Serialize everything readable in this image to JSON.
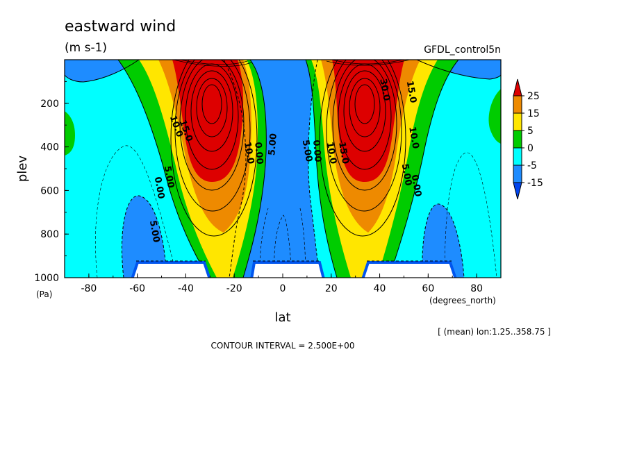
{
  "chart_data": {
    "type": "contour",
    "title": "eastward wind",
    "units": "(m s-1)",
    "dataset": "GFDL_control5n",
    "xlabel": "lat",
    "x_units": "(degrees_north)",
    "ylabel": "plev",
    "y_units": "(Pa)",
    "xlim": [
      -90,
      90
    ],
    "ylim": [
      1000,
      0
    ],
    "x_ticks": [
      -80,
      -60,
      -40,
      -20,
      0,
      20,
      40,
      60,
      80
    ],
    "y_ticks": [
      200,
      400,
      600,
      800,
      1000
    ],
    "region_note": "[ (mean) lon:1.25..358.75 ]",
    "footer": "CONTOUR INTERVAL = 2.500E+00",
    "contour_interval": 2.5,
    "colorbar": {
      "labels": [
        "25",
        "15",
        "5",
        "0",
        "-5",
        "-15"
      ],
      "colors": [
        "#dd0000",
        "#ee8a00",
        "#ffe600",
        "#00cc00",
        "#00ffff",
        "#1e8cff",
        "#0044ee"
      ]
    },
    "jets": [
      {
        "name": "",
        "lat": -30,
        "plev": 200,
        "max": 37.5
      },
      {
        "name": "",
        "lat": 34,
        "plev": 200,
        "max": 37.5
      }
    ],
    "contour_labels": [
      {
        "text": "10.0",
        "lat": -45,
        "plev": 310,
        "rotate": 70
      },
      {
        "text": "15.0",
        "lat": -41,
        "plev": 330,
        "rotate": 70
      },
      {
        "text": "5.00",
        "lat": -48,
        "plev": 540,
        "rotate": 80
      },
      {
        "text": "0.00",
        "lat": -52,
        "plev": 590,
        "rotate": 80
      },
      {
        "text": "5.00",
        "lat": -54,
        "plev": 790,
        "rotate": 80
      },
      {
        "text": "10.0",
        "lat": -15,
        "plev": 430,
        "rotate": 80
      },
      {
        "text": "0.00",
        "lat": -11,
        "plev": 430,
        "rotate": 85
      },
      {
        "text": "5.00",
        "lat": -3,
        "plev": 390,
        "rotate": -85
      },
      {
        "text": "5.00",
        "lat": 9,
        "plev": 420,
        "rotate": 80
      },
      {
        "text": "0.00",
        "lat": 13,
        "plev": 420,
        "rotate": 85
      },
      {
        "text": "10.0",
        "lat": 19,
        "plev": 430,
        "rotate": 80
      },
      {
        "text": "15.0",
        "lat": 24,
        "plev": 430,
        "rotate": 80
      },
      {
        "text": "30.0",
        "lat": 41,
        "plev": 140,
        "rotate": 80
      },
      {
        "text": "15.0",
        "lat": 52,
        "plev": 150,
        "rotate": 80
      },
      {
        "text": "10.0",
        "lat": 53,
        "plev": 360,
        "rotate": 80
      },
      {
        "text": "5.00",
        "lat": 50,
        "plev": 530,
        "rotate": 80
      },
      {
        "text": "0.00",
        "lat": 54,
        "plev": 580,
        "rotate": 80
      }
    ]
  }
}
